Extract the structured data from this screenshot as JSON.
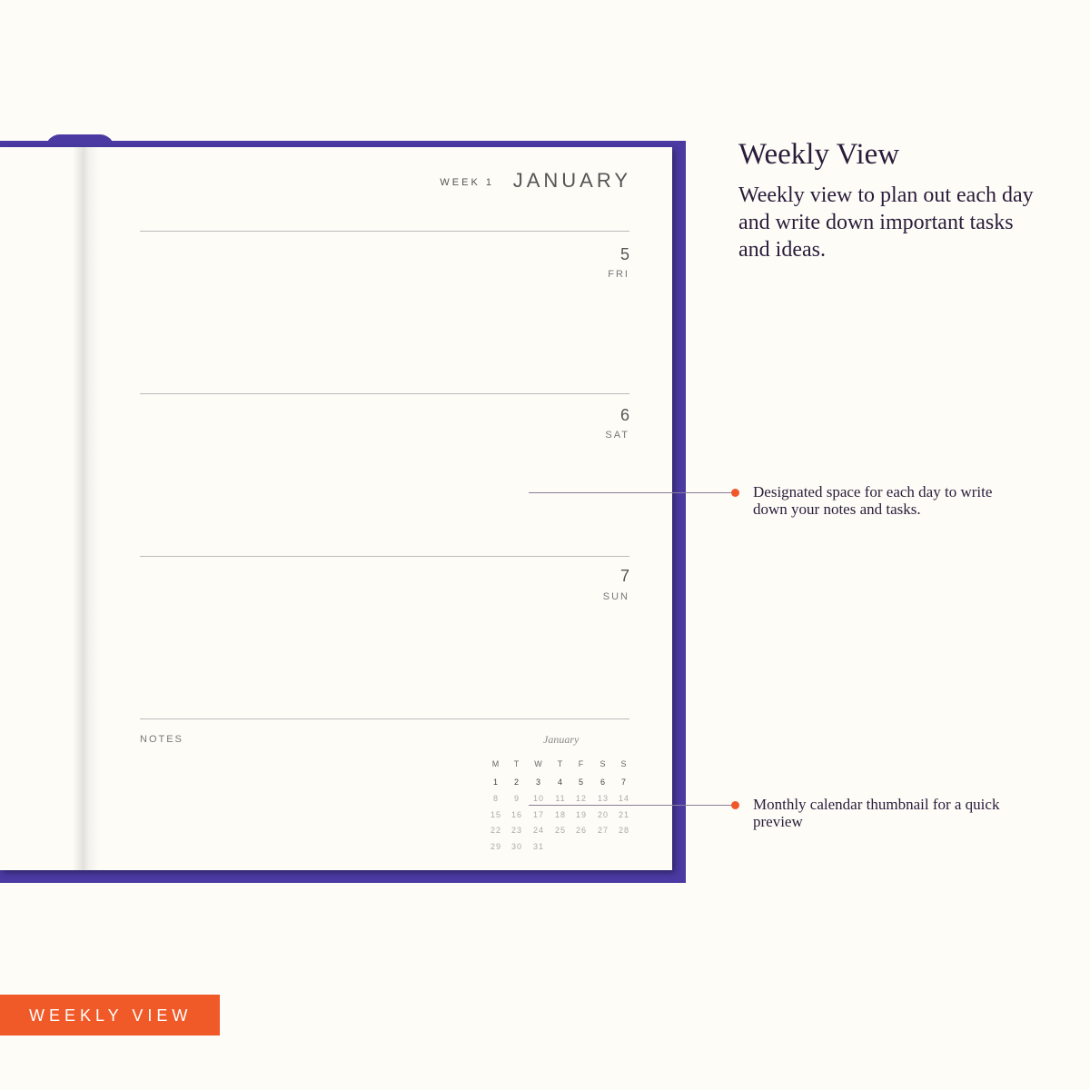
{
  "heading": {
    "title": "Weekly View",
    "description": "Weekly view to plan out each day and write down important tasks and ideas."
  },
  "planner": {
    "week_label": "WEEK 1",
    "month": "JANUARY",
    "days": [
      {
        "num": "5",
        "name": "FRI"
      },
      {
        "num": "6",
        "name": "SAT"
      },
      {
        "num": "7",
        "name": "SUN"
      }
    ],
    "notes_label": "NOTES",
    "calendar": {
      "month": "January",
      "weekdays": [
        "M",
        "T",
        "W",
        "T",
        "F",
        "S",
        "S"
      ],
      "weeks": [
        [
          "1",
          "2",
          "3",
          "4",
          "5",
          "6",
          "7"
        ],
        [
          "8",
          "9",
          "10",
          "11",
          "12",
          "13",
          "14"
        ],
        [
          "15",
          "16",
          "17",
          "18",
          "19",
          "20",
          "21"
        ],
        [
          "22",
          "23",
          "24",
          "25",
          "26",
          "27",
          "28"
        ],
        [
          "29",
          "30",
          "31"
        ]
      ]
    }
  },
  "callouts": [
    "Designated space for each day to write down your notes and tasks.",
    "Monthly calendar thumbnail for a quick preview"
  ],
  "badge": {
    "label": "WEEKLY VIEW",
    "color": "#f05a28"
  },
  "colors": {
    "cover": "#4a3aa2",
    "accent": "#f0582a",
    "text": "#2a1c3a"
  }
}
